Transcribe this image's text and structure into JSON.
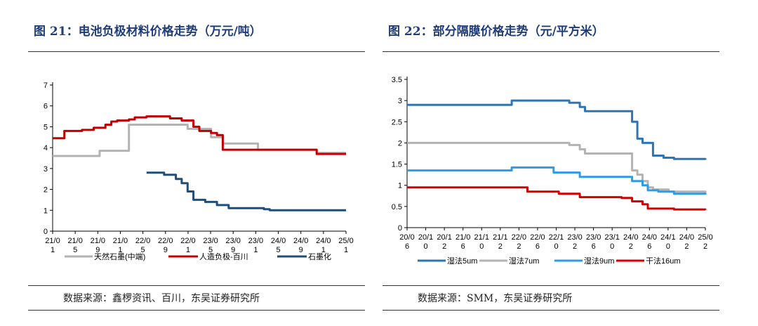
{
  "charts": [
    {
      "figure_title": "图 21：电池负极材料价格走势（万元/吨）",
      "source": "数据来源：鑫椤资讯、百川，东吴证券研究所"
    },
    {
      "figure_title": "图 22：部分隔膜价格走势（元/平方米）",
      "source": "数据来源：SMM，东吴证券研究所"
    }
  ],
  "chart_data": [
    {
      "type": "line",
      "title": "图 21：电池负极材料价格走势（万元/吨）",
      "xlabel": "",
      "ylabel": "",
      "ylim": [
        0,
        7
      ],
      "yticks": [
        0,
        1,
        2,
        3,
        4,
        5,
        6,
        7
      ],
      "x_tick_labels": [
        "21/0\n1",
        "21/0\n5",
        "21/0\n9",
        "21/0\n1",
        "22/0\n5",
        "22/0\n9",
        "22/0\n1",
        "23/0\n5",
        "23/0\n9",
        "23/0\n1",
        "24/0\n5",
        "24/0\n9",
        "24/0\n1",
        "25/0\n1"
      ],
      "x_range": [
        "2021-01",
        "2025-03"
      ],
      "grid": false,
      "legend": "bottom",
      "series": [
        {
          "name": "天然石墨(中端)",
          "color": "#b3b3b3",
          "step": true,
          "points": [
            [
              "2021-01",
              3.6
            ],
            [
              "2021-08",
              3.6
            ],
            [
              "2021-09",
              3.85
            ],
            [
              "2022-01",
              3.85
            ],
            [
              "2022-02",
              5.1
            ],
            [
              "2022-11",
              5.1
            ],
            [
              "2022-12",
              4.9
            ],
            [
              "2023-03",
              4.9
            ],
            [
              "2023-04",
              4.5
            ],
            [
              "2023-05",
              4.5
            ],
            [
              "2023-06",
              4.2
            ],
            [
              "2023-11",
              4.2
            ],
            [
              "2023-12",
              3.9
            ],
            [
              "2024-09",
              3.9
            ],
            [
              "2024-10",
              3.75
            ],
            [
              "2025-03",
              3.75
            ]
          ]
        },
        {
          "name": "人造负极-百川",
          "color": "#c00000",
          "step": true,
          "points": [
            [
              "2021-01",
              4.45
            ],
            [
              "2021-03",
              4.8
            ],
            [
              "2021-06",
              4.85
            ],
            [
              "2021-08",
              4.95
            ],
            [
              "2021-10",
              5.1
            ],
            [
              "2021-11",
              5.25
            ],
            [
              "2021-12",
              5.3
            ],
            [
              "2022-02",
              5.35
            ],
            [
              "2022-03",
              5.45
            ],
            [
              "2022-05",
              5.5
            ],
            [
              "2022-09",
              5.4
            ],
            [
              "2022-11",
              5.3
            ],
            [
              "2023-01",
              5.0
            ],
            [
              "2023-02",
              4.8
            ],
            [
              "2023-04",
              4.7
            ],
            [
              "2023-05",
              4.6
            ],
            [
              "2023-06",
              3.9
            ],
            [
              "2024-10",
              3.7
            ],
            [
              "2025-03",
              3.7
            ]
          ]
        },
        {
          "name": "石墨化",
          "color": "#1f4e79",
          "step": true,
          "points": [
            [
              "2022-05",
              2.8
            ],
            [
              "2022-08",
              2.7
            ],
            [
              "2022-10",
              2.5
            ],
            [
              "2022-11",
              2.3
            ],
            [
              "2022-12",
              1.9
            ],
            [
              "2023-01",
              1.5
            ],
            [
              "2023-03",
              1.4
            ],
            [
              "2023-05",
              1.25
            ],
            [
              "2023-07",
              1.1
            ],
            [
              "2024-01",
              1.05
            ],
            [
              "2024-02",
              1.0
            ],
            [
              "2025-03",
              1.0
            ]
          ]
        }
      ]
    },
    {
      "type": "line",
      "title": "图 22：部分隔膜价格走势（元/平方米）",
      "xlabel": "",
      "ylabel": "",
      "ylim": [
        0,
        3.5
      ],
      "yticks": [
        0,
        0.5,
        1,
        1.5,
        2,
        2.5,
        3,
        3.5
      ],
      "x_tick_labels": [
        "20/0\n6",
        "20/1\n0",
        "20/1\n2",
        "21/0\n6",
        "21/1\n0",
        "21/1\n2",
        "22/0\n2",
        "22/0\n6",
        "22/1\n0",
        "23/0\n2",
        "23/0\n6",
        "23/1\n0",
        "24/0\n2",
        "24/0\n6",
        "24/1\n0",
        "24/0\n2",
        "25/0\n2"
      ],
      "x_range": [
        "2020-06",
        "2025-03"
      ],
      "grid": false,
      "legend": "bottom",
      "series": [
        {
          "name": "湿法5um",
          "color": "#2e75b6",
          "step": true,
          "points": [
            [
              "2020-06",
              2.9
            ],
            [
              "2022-01",
              2.9
            ],
            [
              "2022-02",
              3.0
            ],
            [
              "2022-12",
              3.0
            ],
            [
              "2023-01",
              2.95
            ],
            [
              "2023-03",
              2.85
            ],
            [
              "2023-04",
              2.75
            ],
            [
              "2023-12",
              2.75
            ],
            [
              "2024-01",
              2.5
            ],
            [
              "2024-02",
              2.1
            ],
            [
              "2024-03",
              2.0
            ],
            [
              "2024-05",
              1.7
            ],
            [
              "2024-07",
              1.65
            ],
            [
              "2024-09",
              1.62
            ],
            [
              "2025-03",
              1.6
            ]
          ]
        },
        {
          "name": "湿法7um",
          "color": "#b3b3b3",
          "step": true,
          "points": [
            [
              "2020-06",
              2.0
            ],
            [
              "2022-12",
              2.0
            ],
            [
              "2023-01",
              1.95
            ],
            [
              "2023-03",
              1.85
            ],
            [
              "2023-04",
              1.75
            ],
            [
              "2023-12",
              1.75
            ],
            [
              "2024-01",
              1.35
            ],
            [
              "2024-02",
              1.25
            ],
            [
              "2024-03",
              1.1
            ],
            [
              "2024-04",
              0.95
            ],
            [
              "2024-05",
              0.9
            ],
            [
              "2024-08",
              0.85
            ],
            [
              "2025-03",
              0.82
            ]
          ]
        },
        {
          "name": "湿法9um",
          "color": "#2e9be6",
          "step": true,
          "points": [
            [
              "2020-06",
              1.35
            ],
            [
              "2022-01",
              1.35
            ],
            [
              "2022-02",
              1.42
            ],
            [
              "2022-09",
              1.42
            ],
            [
              "2022-10",
              1.3
            ],
            [
              "2023-02",
              1.3
            ],
            [
              "2023-03",
              1.2
            ],
            [
              "2023-12",
              1.2
            ],
            [
              "2024-01",
              1.1
            ],
            [
              "2024-03",
              1.0
            ],
            [
              "2024-04",
              0.88
            ],
            [
              "2024-06",
              0.85
            ],
            [
              "2024-09",
              0.8
            ],
            [
              "2025-03",
              0.78
            ]
          ]
        },
        {
          "name": "干法16um",
          "color": "#d40000",
          "step": true,
          "points": [
            [
              "2020-06",
              0.95
            ],
            [
              "2022-04",
              0.95
            ],
            [
              "2022-05",
              0.85
            ],
            [
              "2022-11",
              0.8
            ],
            [
              "2023-03",
              0.72
            ],
            [
              "2023-11",
              0.7
            ],
            [
              "2024-01",
              0.62
            ],
            [
              "2024-03",
              0.55
            ],
            [
              "2024-04",
              0.45
            ],
            [
              "2024-09",
              0.43
            ],
            [
              "2025-03",
              0.42
            ]
          ]
        }
      ]
    }
  ]
}
